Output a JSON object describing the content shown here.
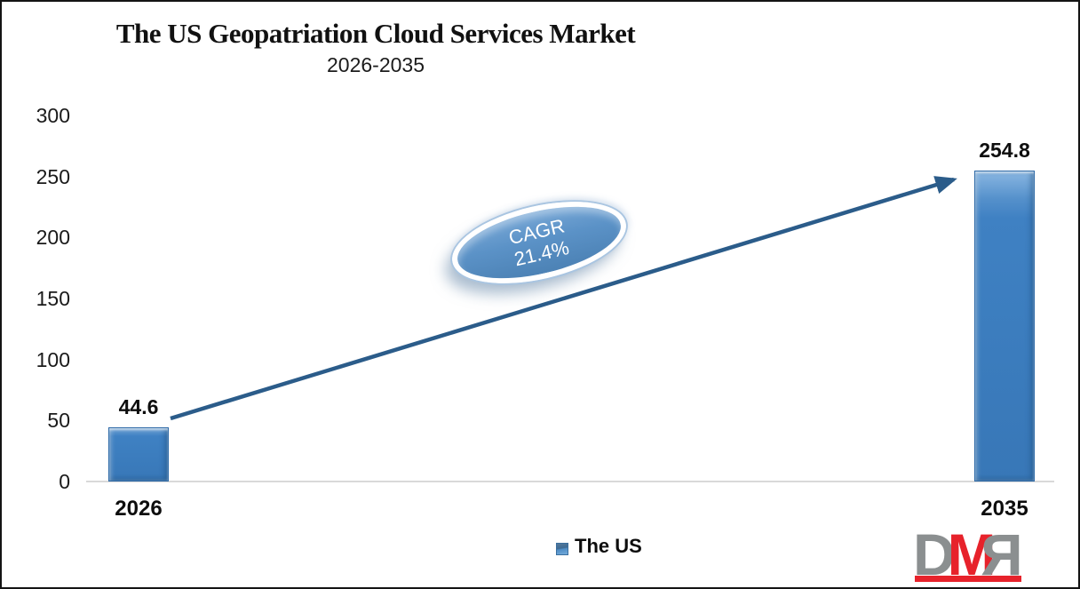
{
  "chart_data": {
    "type": "bar",
    "title": "The US Geopatriation Cloud Services Market",
    "subtitle": "2026-2035",
    "categories": [
      "2026",
      "2035"
    ],
    "series": [
      {
        "name": "The US",
        "values": [
          44.6,
          254.8
        ]
      }
    ],
    "value_labels": [
      "44.6",
      "254.8"
    ],
    "xlabel": "",
    "ylabel": "",
    "ylim": [
      0,
      300
    ],
    "yticks": [
      0,
      50,
      100,
      150,
      200,
      250,
      300
    ],
    "grid": false,
    "legend_position": "bottom",
    "annotation": {
      "line1": "CAGR",
      "line2": "21.4%"
    },
    "colors": {
      "bar_fill": "#3b7dbf",
      "arrow": "#2b5c8a",
      "ellipse_fill": "#5b92c7",
      "baseline": "#d9d9d9"
    }
  },
  "legend": {
    "label": "The US"
  },
  "logo": {
    "letter_d": "D",
    "letter_m": "M",
    "letter_r": "R",
    "gray": "#8b8f90",
    "red": "#e7222b"
  }
}
